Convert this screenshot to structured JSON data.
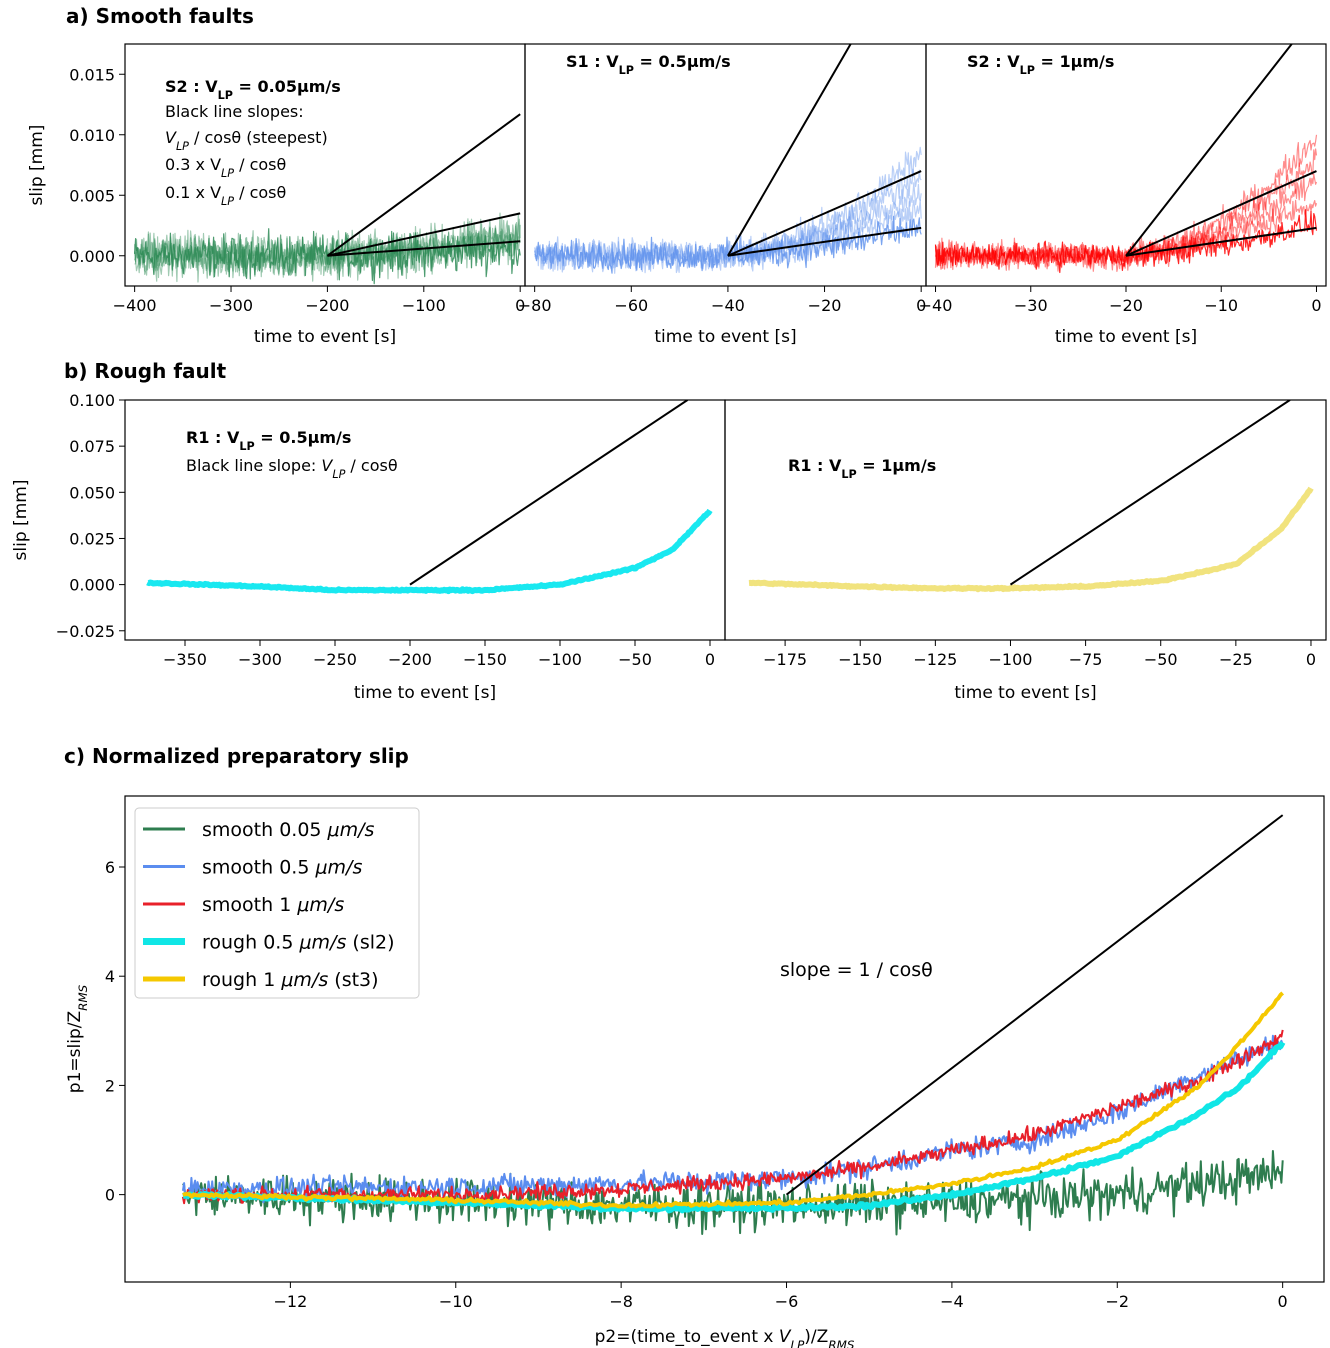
{
  "chart_data": [
    {
      "panel": "a",
      "panel_title": "a) Smooth faults",
      "type": "line",
      "ylabel": "slip [mm]",
      "ylim": [
        -0.0025,
        0.0175
      ],
      "yticks": [
        0.0,
        0.005,
        0.01,
        0.015
      ],
      "ytick_labels": [
        "0.000",
        "0.005",
        "0.010",
        "0.015"
      ],
      "subplots": [
        {
          "id": "S2-0.05",
          "title_main": "S2 : V",
          "title_sub": "LP",
          "title_value": " = 0.05μm/s",
          "annotations": [
            "Black line slopes:",
            "V",
            "LP",
            " / cosθ (steepest)",
            "0.3 x V",
            "LP",
            " / cosθ",
            "0.1 x V",
            "LP",
            " / cosθ"
          ],
          "xlabel": "time to event [s]",
          "xlim": [
            -410,
            5
          ],
          "xticks": [
            -400,
            -300,
            -200,
            -100,
            0
          ],
          "xtick_labels": [
            "−400",
            "−300",
            "−200",
            "−100",
            "0"
          ],
          "series_color": "#2e8b57",
          "data_range_x": [
            -400,
            0
          ],
          "noise_amplitude": 0.0025,
          "black_lines": [
            {
              "x": [
                -200,
                0
              ],
              "y": [
                0.0,
                0.0117
              ]
            },
            {
              "x": [
                -200,
                0
              ],
              "y": [
                0.0,
                0.0035
              ]
            },
            {
              "x": [
                -200,
                0
              ],
              "y": [
                0.0,
                0.0012
              ]
            }
          ]
        },
        {
          "id": "S1-0.5",
          "title_main": "S1 : V",
          "title_sub": "LP",
          "title_value": " = 0.5μm/s",
          "xlabel": "time to event [s]",
          "xlim": [
            -82,
            1
          ],
          "xticks": [
            -80,
            -60,
            -40,
            -20,
            0
          ],
          "xtick_labels": [
            "−80",
            "−60",
            "−40",
            "−20",
            "0"
          ],
          "series_color": "#6495ed",
          "data_range_x": [
            -80,
            0
          ],
          "noise_amplitude": 0.0018,
          "black_lines": [
            {
              "x": [
                -40,
                -14.6
              ],
              "y": [
                0.0,
                0.0175
              ]
            },
            {
              "x": [
                -40,
                0
              ],
              "y": [
                0.0,
                0.007
              ]
            },
            {
              "x": [
                -40,
                0
              ],
              "y": [
                0.0,
                0.0023
              ]
            }
          ]
        },
        {
          "id": "S2-1",
          "title_main": "S2 : V",
          "title_sub": "LP",
          "title_value": " = 1μm/s",
          "xlabel": "time to event [s]",
          "xlim": [
            -41,
            1
          ],
          "xticks": [
            -40,
            -30,
            -20,
            -10,
            0
          ],
          "xtick_labels": [
            "−40",
            "−30",
            "−20",
            "−10",
            "0"
          ],
          "series_color": "#ff0000",
          "data_range_x": [
            -40,
            0
          ],
          "noise_amplitude": 0.0015,
          "black_lines": [
            {
              "x": [
                -20,
                -2.6
              ],
              "y": [
                0.0,
                0.0175
              ]
            },
            {
              "x": [
                -20,
                0
              ],
              "y": [
                0.0,
                0.007
              ]
            },
            {
              "x": [
                -20,
                0
              ],
              "y": [
                0.0,
                0.0023
              ]
            }
          ]
        }
      ]
    },
    {
      "panel": "b",
      "panel_title": "b) Rough fault",
      "type": "line",
      "ylabel": "slip [mm]",
      "ylim": [
        -0.03,
        0.1
      ],
      "yticks": [
        -0.025,
        0.0,
        0.025,
        0.05,
        0.075,
        0.1
      ],
      "ytick_labels": [
        "−0.025",
        "0.000",
        "0.025",
        "0.050",
        "0.075",
        "0.100"
      ],
      "subplots": [
        {
          "id": "R1-0.5",
          "title_main": "R1 : V",
          "title_sub": "LP",
          "title_value": " = 0.5μm/s",
          "annotations": [
            "Black line slope: ",
            "V",
            "LP",
            " / cosθ"
          ],
          "xlabel": "time to event [s]",
          "xlim": [
            -390,
            10
          ],
          "xticks": [
            -350,
            -300,
            -250,
            -200,
            -150,
            -100,
            -50,
            0
          ],
          "xtick_labels": [
            "−350",
            "−300",
            "−250",
            "−200",
            "−150",
            "−100",
            "−50",
            "0"
          ],
          "series_color": "#00e5ee",
          "curve": {
            "x": [
              -375,
              -300,
              -250,
              -200,
              -150,
              -100,
              -50,
              -25,
              0
            ],
            "y": [
              0.001,
              -0.001,
              -0.003,
              -0.003,
              -0.003,
              0.0,
              0.009,
              0.019,
              0.04
            ]
          },
          "black_lines": [
            {
              "x": [
                -200,
                -15
              ],
              "y": [
                0.0,
                0.1
              ]
            }
          ]
        },
        {
          "id": "R1-1",
          "title_main": "R1 : V",
          "title_sub": "LP",
          "title_value": " = 1μm/s",
          "xlabel": "time to event [s]",
          "xlim": [
            -195,
            5
          ],
          "xticks": [
            -175,
            -150,
            -125,
            -100,
            -75,
            -50,
            -25,
            0
          ],
          "xtick_labels": [
            "−175",
            "−150",
            "−125",
            "−100",
            "−75",
            "−50",
            "−25",
            "0"
          ],
          "series_color": "#f0e070",
          "curve": {
            "x": [
              -187,
              -150,
              -125,
              -100,
              -75,
              -50,
              -25,
              -10,
              0
            ],
            "y": [
              0.001,
              -0.001,
              -0.002,
              -0.002,
              -0.001,
              0.002,
              0.011,
              0.03,
              0.052
            ]
          },
          "black_lines": [
            {
              "x": [
                -100,
                -7
              ],
              "y": [
                0.0,
                0.1
              ]
            }
          ]
        }
      ]
    },
    {
      "panel": "c",
      "panel_title": "c) Normalized preparatory slip",
      "type": "line",
      "xlabel_main": "p2=(time_to_event x ",
      "xlabel_sub": "LP",
      "xlabel_rest": ")/Z",
      "xlabel_rms": "RMS",
      "ylabel_main": "p1=slip/Z",
      "ylabel_rms": "RMS",
      "xlim": [
        -14,
        0.5
      ],
      "ylim": [
        -1.6,
        7.3
      ],
      "xticks": [
        -12,
        -10,
        -8,
        -6,
        -4,
        -2,
        0
      ],
      "xtick_labels": [
        "−12",
        "−10",
        "−8",
        "−6",
        "−4",
        "−2",
        "0"
      ],
      "yticks": [
        0,
        2,
        4,
        6
      ],
      "ytick_labels": [
        "0",
        "2",
        "4",
        "6"
      ],
      "annotation": "slope = 1 / cosθ",
      "black_line": {
        "x": [
          -6,
          0
        ],
        "y": [
          0.0,
          6.95
        ]
      },
      "legend_position": "top-left",
      "series": [
        {
          "name": "smooth 0.05 μm/s",
          "legend_main": "smooth 0.05 ",
          "legend_unit": "μm/s",
          "legend_suffix": "",
          "color": "#2e7d4f",
          "curve": {
            "x": [
              -13.3,
              -10,
              -8,
              -6,
              -4,
              -2,
              -1,
              0
            ],
            "y": [
              0,
              -0.1,
              -0.2,
              -0.2,
              -0.15,
              0.0,
              0.2,
              0.4
            ]
          },
          "noise": 0.6
        },
        {
          "name": "smooth 0.5 μm/s",
          "legend_main": "smooth 0.5 ",
          "legend_unit": "μm/s",
          "legend_suffix": "",
          "color": "#5b8def",
          "curve": {
            "x": [
              -13.3,
              -10,
              -8,
              -6,
              -5,
              -4,
              -3,
              -2,
              -1,
              0
            ],
            "y": [
              0.1,
              0.15,
              0.2,
              0.3,
              0.5,
              0.8,
              1.0,
              1.5,
              2.2,
              2.8
            ]
          },
          "noise": 0.3
        },
        {
          "name": "smooth 1 μm/s",
          "legend_main": "smooth 1 ",
          "legend_unit": "μm/s",
          "legend_suffix": "",
          "color": "#e8202a",
          "curve": {
            "x": [
              -13.3,
              -10,
              -8,
              -6,
              -5,
              -4,
              -3,
              -2,
              -1,
              0
            ],
            "y": [
              0.0,
              0.0,
              0.1,
              0.3,
              0.5,
              0.8,
              1.1,
              1.6,
              2.1,
              2.9
            ]
          },
          "noise": 0.2
        },
        {
          "name": "rough 0.5 μm/s (sl2)",
          "legend_main": "rough 0.5 ",
          "legend_unit": "μm/s",
          "legend_suffix": " (sl2)",
          "color": "#10e6e6",
          "curve": {
            "x": [
              -13.3,
              -10,
              -8,
              -6,
              -5,
              -4,
              -3,
              -2,
              -1,
              -0.5,
              0
            ],
            "y": [
              0.0,
              -0.15,
              -0.25,
              -0.25,
              -0.2,
              0.0,
              0.3,
              0.7,
              1.5,
              2.0,
              2.8
            ]
          },
          "noise": 0.05
        },
        {
          "name": "rough 1 μm/s (st3)",
          "legend_main": "rough 1 ",
          "legend_unit": "μm/s",
          "legend_suffix": " (st3)",
          "color": "#f5c800",
          "curve": {
            "x": [
              -13.3,
              -10,
              -8,
              -6,
              -5,
              -4,
              -3,
              -2,
              -1,
              -0.5,
              0
            ],
            "y": [
              0.0,
              -0.1,
              -0.2,
              -0.15,
              0.0,
              0.2,
              0.5,
              1.0,
              2.0,
              2.8,
              3.7
            ]
          },
          "noise": 0.05
        }
      ]
    }
  ]
}
